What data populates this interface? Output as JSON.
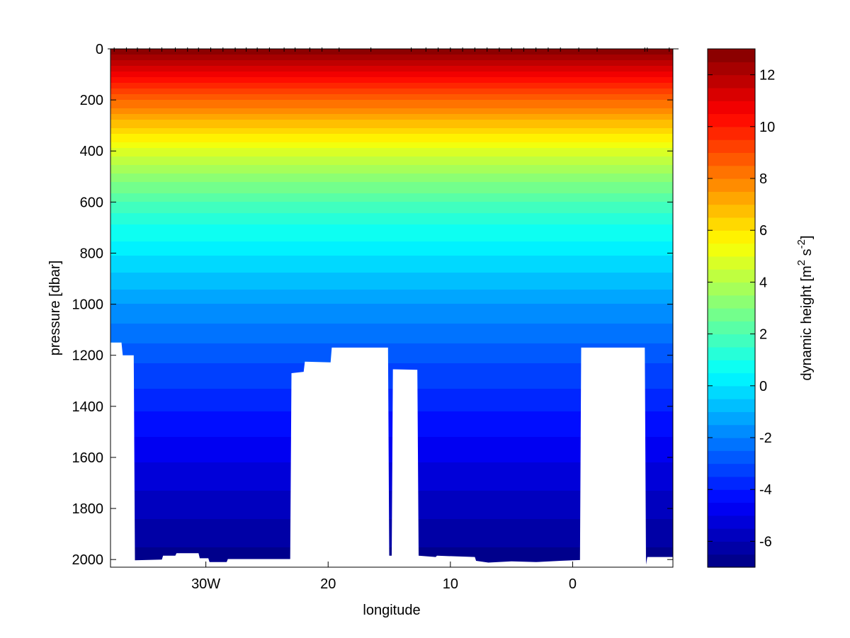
{
  "chart_data": {
    "type": "heatmap",
    "title": "",
    "xlabel": "longitude",
    "ylabel": "pressure [dbar]",
    "x_ticks": [
      {
        "value": -30,
        "label": "30W"
      },
      {
        "value": -20,
        "label": "20"
      },
      {
        "value": -10,
        "label": "10"
      },
      {
        "value": 0,
        "label": "0"
      }
    ],
    "y_ticks": [
      {
        "value": 0,
        "label": "0"
      },
      {
        "value": 200,
        "label": "200"
      },
      {
        "value": 400,
        "label": "400"
      },
      {
        "value": 600,
        "label": "600"
      },
      {
        "value": 800,
        "label": "800"
      },
      {
        "value": 1000,
        "label": "1000"
      },
      {
        "value": 1200,
        "label": "1200"
      },
      {
        "value": 1400,
        "label": "1400"
      },
      {
        "value": 1600,
        "label": "1600"
      },
      {
        "value": 1800,
        "label": "1800"
      },
      {
        "value": 2000,
        "label": "2000"
      }
    ],
    "xlim": [
      -37.8,
      8.2
    ],
    "ylim": [
      0,
      2030
    ],
    "y_reversed": true,
    "colorbar": {
      "label_parts": [
        "dynamic height [m",
        "2",
        " s",
        "-2",
        "]"
      ],
      "clim": [
        -7,
        13
      ],
      "ticks": [
        {
          "value": -6,
          "label": "-6"
        },
        {
          "value": -4,
          "label": "-4"
        },
        {
          "value": -2,
          "label": "-2"
        },
        {
          "value": 0,
          "label": "0"
        },
        {
          "value": 2,
          "label": "2"
        },
        {
          "value": 4,
          "label": "4"
        },
        {
          "value": 6,
          "label": "6"
        },
        {
          "value": 8,
          "label": "8"
        },
        {
          "value": 10,
          "label": "10"
        },
        {
          "value": 12,
          "label": "12"
        }
      ],
      "colormap": "jet",
      "levels": 40
    },
    "field": {
      "description_levels": [
        {
          "pressure": 0,
          "value": 13
        },
        {
          "pressure": 100,
          "value": 10.8
        },
        {
          "pressure": 200,
          "value": 8.6
        },
        {
          "pressure": 300,
          "value": 6.6
        },
        {
          "pressure": 400,
          "value": 4.8
        },
        {
          "pressure": 500,
          "value": 3.3
        },
        {
          "pressure": 600,
          "value": 2.0
        },
        {
          "pressure": 700,
          "value": 0.9
        },
        {
          "pressure": 800,
          "value": 0.1
        },
        {
          "pressure": 900,
          "value": -0.7
        },
        {
          "pressure": 1000,
          "value": -1.5
        },
        {
          "pressure": 1200,
          "value": -2.8
        },
        {
          "pressure": 1400,
          "value": -3.9
        },
        {
          "pressure": 1600,
          "value": -4.9
        },
        {
          "pressure": 1800,
          "value": -5.8
        },
        {
          "pressure": 2000,
          "value": -6.7
        },
        {
          "pressure": 2030,
          "value": -6.9
        }
      ]
    },
    "stations_longitude": [
      -37.5,
      -36.5,
      -35.6,
      -34.6,
      -33.6,
      -32.5,
      -31.5,
      -30.6,
      -29.6,
      -28.6,
      -27.6,
      -26.7,
      -25.8,
      -24.8,
      -23.6,
      -22.7,
      -21.5,
      -20.5,
      -19.1,
      -16.5,
      -13.2,
      -12.0,
      -11.0,
      -10.0,
      -9.0,
      -8.0,
      -7.0,
      -6.0,
      -5.0,
      -4.0,
      -3.0,
      -2.0,
      -1.0,
      0.5,
      2.0,
      5.9,
      6.1,
      7.9
    ],
    "bottom_profile": [
      {
        "lon": -37.8,
        "depth": 1150
      },
      {
        "lon": -36.9,
        "depth": 1150
      },
      {
        "lon": -36.8,
        "depth": 1200
      },
      {
        "lon": -35.9,
        "depth": 1200
      },
      {
        "lon": -35.8,
        "depth": 2003
      },
      {
        "lon": -33.6,
        "depth": 2000
      },
      {
        "lon": -33.5,
        "depth": 1985
      },
      {
        "lon": -32.5,
        "depth": 1985
      },
      {
        "lon": -32.4,
        "depth": 1975
      },
      {
        "lon": -30.6,
        "depth": 1975
      },
      {
        "lon": -30.5,
        "depth": 1995
      },
      {
        "lon": -29.8,
        "depth": 1995
      },
      {
        "lon": -29.7,
        "depth": 2010
      },
      {
        "lon": -28.3,
        "depth": 2010
      },
      {
        "lon": -28.2,
        "depth": 1998
      },
      {
        "lon": -23.1,
        "depth": 1998
      },
      {
        "lon": -23.0,
        "depth": 1270
      },
      {
        "lon": -22.0,
        "depth": 1265
      },
      {
        "lon": -21.9,
        "depth": 1225
      },
      {
        "lon": -19.8,
        "depth": 1228
      },
      {
        "lon": -19.7,
        "depth": 1170
      },
      {
        "lon": -15.1,
        "depth": 1170
      },
      {
        "lon": -15.0,
        "depth": 1985
      },
      {
        "lon": -14.8,
        "depth": 1985
      },
      {
        "lon": -14.7,
        "depth": 1255
      },
      {
        "lon": -12.7,
        "depth": 1257
      },
      {
        "lon": -12.6,
        "depth": 1985
      },
      {
        "lon": -11.2,
        "depth": 1990
      },
      {
        "lon": -11.1,
        "depth": 1985
      },
      {
        "lon": -8.0,
        "depth": 1990
      },
      {
        "lon": -7.9,
        "depth": 2005
      },
      {
        "lon": -6.9,
        "depth": 2012
      },
      {
        "lon": -5.0,
        "depth": 2007
      },
      {
        "lon": -3.0,
        "depth": 2010
      },
      {
        "lon": -1.0,
        "depth": 2005
      },
      {
        "lon": 0.6,
        "depth": 2002
      },
      {
        "lon": 0.7,
        "depth": 1170
      },
      {
        "lon": 5.9,
        "depth": 1170
      },
      {
        "lon": 6.0,
        "depth": 2020
      },
      {
        "lon": 6.1,
        "depth": 1990
      },
      {
        "lon": 8.2,
        "depth": 1990
      }
    ]
  }
}
